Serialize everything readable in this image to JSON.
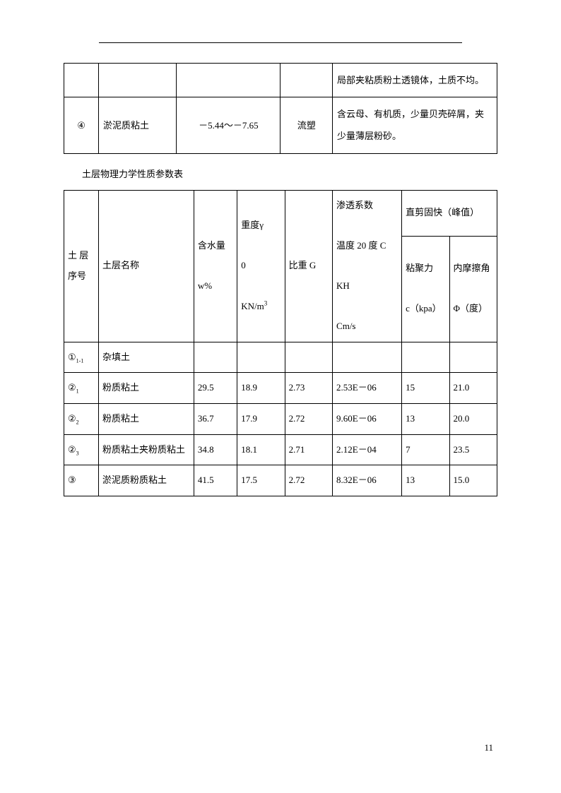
{
  "table1": {
    "rows": [
      {
        "c1": "",
        "c2": "",
        "c3": "",
        "c4": "",
        "c5": "局部夹粘质粉土透镜体，土质不均。"
      },
      {
        "c1": "④",
        "c2": "淤泥质粘土",
        "c3": "－5.44～－7.65",
        "c4": "流塑",
        "c5": "含云母、有机质，少量贝壳碎屑，夹少量薄层粉砂。"
      }
    ]
  },
  "caption": "土层物理力学性质参数表",
  "table2": {
    "headers": {
      "h1": "土 层序号",
      "h2": "土层名称",
      "h3_line1": "含水量",
      "h3_line2": "w%",
      "h4_line1": "重度γ",
      "h4_line2": "0",
      "h4_line3": "KN/m",
      "h4_sup": "3",
      "h5": "比重 G",
      "h6_line1": "渗透系数",
      "h6_line2": "温度 20 度 C",
      "h6_line3": "KH",
      "h6_line4": "Cm/s",
      "h7_merged": "直剪固快（峰值）",
      "h7a_line1": "粘聚力",
      "h7a_line2": "c（kpa）",
      "h7b_line1": "内摩擦角",
      "h7b_line2": "Φ（度）"
    },
    "rows": [
      {
        "c1_main": "①",
        "c1_sub": "1-1",
        "c2": "杂填土",
        "c3": "",
        "c4": "",
        "c5": "",
        "c6": "",
        "c7": "",
        "c8": ""
      },
      {
        "c1_main": "②",
        "c1_sub": "1",
        "c2": "粉质粘土",
        "c3": "29.5",
        "c4": "18.9",
        "c5": "2.73",
        "c6": "2.53E－06",
        "c7": "15",
        "c8": "21.0"
      },
      {
        "c1_main": "②",
        "c1_sub": "2",
        "c2": "粉质粘土",
        "c3": "36.7",
        "c4": "17.9",
        "c5": "2.72",
        "c6": "9.60E－06",
        "c7": "13",
        "c8": "20.0"
      },
      {
        "c1_main": "②",
        "c1_sub": "3",
        "c2": "粉质粘土夹粉质粘土",
        "c3": "34.8",
        "c4": "18.1",
        "c5": "2.71",
        "c6": "2.12E－04",
        "c7": "7",
        "c8": "23.5"
      },
      {
        "c1_main": "③",
        "c1_sub": "",
        "c2": "淤泥质粉质粘土",
        "c3": "41.5",
        "c4": "17.5",
        "c5": "2.72",
        "c6": "8.32E－06",
        "c7": "13",
        "c8": "15.0"
      }
    ]
  },
  "page_number": "11"
}
